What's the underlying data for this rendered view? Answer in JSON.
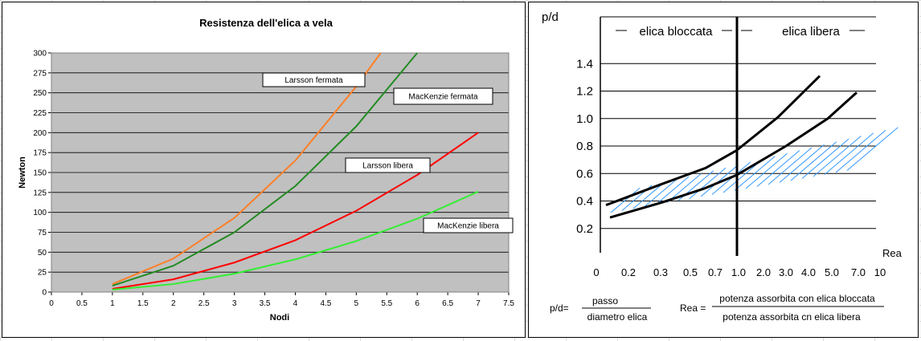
{
  "chart_data": [
    {
      "type": "line",
      "title": "Resistenza dell'elica a vela",
      "xlabel": "Nodi",
      "ylabel": "Newton",
      "xlim": [
        0,
        7.5
      ],
      "ylim": [
        0,
        300
      ],
      "x_ticks": [
        "0",
        "0.5",
        "1",
        "1.5",
        "2",
        "2.5",
        "3",
        "3.5",
        "4",
        "4.5",
        "5",
        "5.5",
        "6",
        "6.5",
        "7",
        "7.5"
      ],
      "y_ticks": [
        "0",
        "25",
        "50",
        "75",
        "100",
        "125",
        "150",
        "175",
        "200",
        "225",
        "250",
        "275",
        "300"
      ],
      "grid": true,
      "plot_background": "#c0c0c0",
      "series": [
        {
          "name": "Larsson fermata",
          "color": "#ff7f27",
          "x": [
            1,
            2,
            3,
            4,
            5,
            5.4
          ],
          "y": [
            10,
            42,
            93,
            165,
            258,
            300
          ]
        },
        {
          "name": "MacKenzie fermata",
          "color": "#228b22",
          "x": [
            1,
            2,
            3,
            4,
            5,
            6
          ],
          "y": [
            8,
            33,
            75,
            133,
            208,
            300
          ]
        },
        {
          "name": "Larsson libera",
          "color": "#ff0000",
          "x": [
            1,
            2,
            3,
            4,
            5,
            6,
            7
          ],
          "y": [
            4,
            16,
            37,
            65,
            102,
            147,
            200
          ]
        },
        {
          "name": "MacKenzie libera",
          "color": "#33ee33",
          "x": [
            1,
            2,
            3,
            4,
            5,
            6,
            7
          ],
          "y": [
            3,
            10,
            23,
            41,
            64,
            92,
            126
          ]
        }
      ]
    },
    {
      "type": "line",
      "ylabel": "p/d",
      "xlabel": "Rea",
      "y_ticks": [
        "1.4",
        "1.2",
        "1.0",
        "0.8",
        "0.6",
        "0.4",
        "0.2"
      ],
      "y_tick_values": [
        1.4,
        1.2,
        1.0,
        0.8,
        0.6,
        0.4,
        0.2
      ],
      "ylim": [
        0,
        1.6
      ],
      "x_ticks": [
        "0",
        "0.2",
        "0.3",
        "0.5",
        "0.7",
        "1.0",
        "2.0",
        "3.0",
        "4.0",
        "5.0",
        "7.0",
        "10"
      ],
      "region_left": "elica bloccata",
      "region_right": "elica libera",
      "divider_at": "1.0",
      "bands": [
        {
          "x": [
            0,
            1,
            2,
            3,
            4,
            5
          ],
          "y": [
            0.37,
            0.52,
            0.64,
            0.77,
            1.01,
            1.31
          ]
        },
        {
          "x": [
            0,
            1,
            2,
            3,
            4,
            5,
            6
          ],
          "y": [
            0.28,
            0.39,
            0.49,
            0.59,
            0.8,
            1.0,
            1.19
          ]
        }
      ],
      "hatch_color": "#3399ff",
      "formulas": [
        {
          "lhs": "p/d=",
          "numerator": "passo",
          "denominator": "diametro elica"
        },
        {
          "lhs": "Rea =",
          "numerator": "potenza assorbita con elica bloccata",
          "denominator": "potenza assorbita cn elica libera"
        }
      ]
    }
  ]
}
